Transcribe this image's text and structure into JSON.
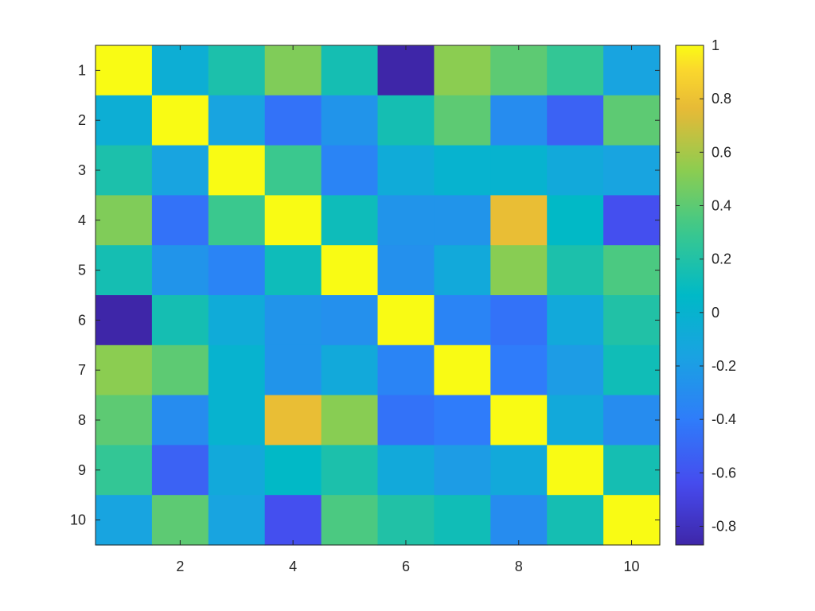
{
  "chart_data": {
    "type": "heatmap",
    "title": "",
    "xlabel": "",
    "ylabel": "",
    "x_ticks": [
      "2",
      "4",
      "6",
      "8",
      "10"
    ],
    "x_tick_values": [
      2,
      4,
      6,
      8,
      10
    ],
    "y_ticks": [
      "1",
      "2",
      "3",
      "4",
      "5",
      "6",
      "7",
      "8",
      "9",
      "10"
    ],
    "y_tick_values": [
      1,
      2,
      3,
      4,
      5,
      6,
      7,
      8,
      9,
      10
    ],
    "xlim": [
      0.5,
      10.5
    ],
    "ylim": [
      0.5,
      10.5
    ],
    "y_direction": "reverse",
    "grid": false,
    "colormap": "parula",
    "clim": [
      -0.87,
      1
    ],
    "colorbar": {
      "placement": "right",
      "ticks": [
        "1",
        "0.8",
        "0.6",
        "0.4",
        "0.2",
        "0",
        "-0.2",
        "-0.4",
        "-0.6",
        "-0.8"
      ],
      "tick_values": [
        1,
        0.8,
        0.6,
        0.4,
        0.2,
        0,
        -0.2,
        -0.4,
        -0.6,
        -0.8
      ]
    },
    "values": [
      [
        1.0,
        -0.05,
        0.18,
        0.5,
        0.15,
        -0.87,
        0.53,
        0.4,
        0.27,
        -0.15
      ],
      [
        -0.05,
        1.0,
        -0.15,
        -0.45,
        -0.25,
        0.15,
        0.4,
        -0.3,
        -0.53,
        0.4
      ],
      [
        0.18,
        -0.15,
        1.0,
        0.3,
        -0.35,
        -0.08,
        0.0,
        0.0,
        -0.1,
        -0.15
      ],
      [
        0.5,
        -0.45,
        0.3,
        1.0,
        0.12,
        -0.25,
        -0.25,
        0.78,
        0.07,
        -0.62
      ],
      [
        0.15,
        -0.25,
        -0.35,
        0.12,
        1.0,
        -0.28,
        -0.1,
        0.52,
        0.18,
        0.35
      ],
      [
        -0.87,
        0.15,
        -0.08,
        -0.25,
        -0.28,
        1.0,
        -0.35,
        -0.45,
        -0.1,
        0.2
      ],
      [
        0.53,
        0.4,
        0.0,
        -0.25,
        -0.1,
        -0.35,
        1.0,
        -0.4,
        -0.2,
        0.13
      ],
      [
        0.4,
        -0.3,
        0.0,
        0.78,
        0.52,
        -0.45,
        -0.4,
        1.0,
        -0.1,
        -0.3
      ],
      [
        0.27,
        -0.53,
        -0.1,
        0.07,
        0.18,
        -0.1,
        -0.2,
        -0.1,
        1.0,
        0.15
      ],
      [
        -0.15,
        0.4,
        -0.15,
        -0.62,
        0.35,
        0.2,
        0.13,
        -0.3,
        0.15,
        1.0
      ]
    ]
  }
}
